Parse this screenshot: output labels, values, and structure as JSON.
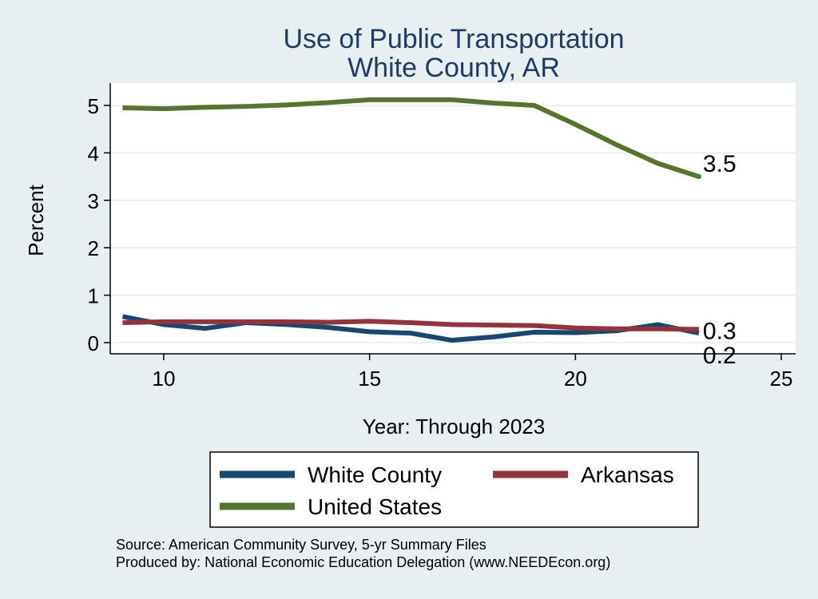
{
  "chart_data": {
    "type": "line",
    "title": "Use of Public Transportation",
    "subtitle": "White County, AR",
    "xlabel": "Year: Through 2023",
    "ylabel": "Percent",
    "xlim": [
      9,
      25
    ],
    "ylim": [
      0,
      5
    ],
    "x_ticks": [
      10,
      15,
      20,
      25
    ],
    "y_ticks": [
      0,
      1,
      2,
      3,
      4,
      5
    ],
    "grid": true,
    "legend_position": "bottom",
    "x": [
      9,
      10,
      11,
      12,
      13,
      14,
      15,
      16,
      17,
      18,
      19,
      20,
      21,
      22,
      23
    ],
    "series": [
      {
        "name": "White County",
        "color": "#1a476f",
        "values": [
          0.55,
          0.38,
          0.3,
          0.42,
          0.38,
          0.32,
          0.23,
          0.2,
          0.05,
          0.12,
          0.22,
          0.21,
          0.25,
          0.38,
          0.2
        ],
        "end_label": "0.2"
      },
      {
        "name": "Arkansas",
        "color": "#90353b",
        "values": [
          0.42,
          0.44,
          0.44,
          0.44,
          0.44,
          0.43,
          0.45,
          0.42,
          0.38,
          0.37,
          0.36,
          0.31,
          0.29,
          0.29,
          0.28
        ],
        "end_label": "0.3"
      },
      {
        "name": "United States",
        "color": "#55752f",
        "values": [
          4.95,
          4.93,
          4.96,
          4.98,
          5.01,
          5.06,
          5.12,
          5.12,
          5.12,
          5.05,
          5.0,
          4.6,
          4.17,
          3.78,
          3.5
        ],
        "end_label": "3.5"
      }
    ]
  },
  "source_note": "Source: American Community Survey, 5-yr Summary Files",
  "producer_note": "Produced by: National Economic Education Delegation (www.NEEDEcon.org)"
}
